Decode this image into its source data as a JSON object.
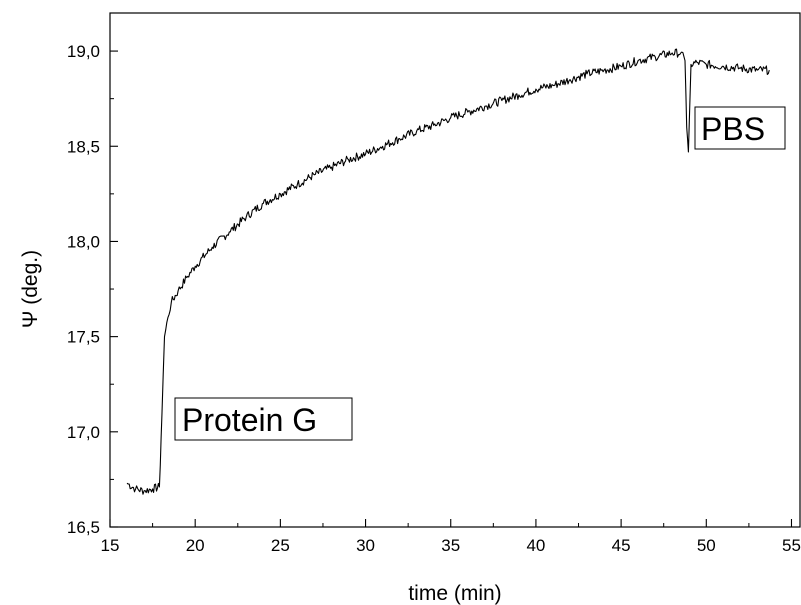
{
  "chart_data": {
    "type": "line",
    "title": "",
    "xlabel": "time (min)",
    "ylabel": "Ψ (deg.)",
    "xlim": [
      15,
      55.5
    ],
    "ylim": [
      16.5,
      19.2
    ],
    "x_ticks": [
      15,
      20,
      25,
      30,
      35,
      40,
      45,
      50,
      55
    ],
    "x_tick_labels": [
      "15",
      "20",
      "25",
      "30",
      "35",
      "40",
      "45",
      "50",
      "55"
    ],
    "y_ticks": [
      16.5,
      17.0,
      17.5,
      18.0,
      18.5,
      19.0
    ],
    "y_tick_labels": [
      "16,5",
      "17,0",
      "17,5",
      "18,0",
      "18,5",
      "19,0"
    ],
    "grid": false,
    "line_color": "#000000",
    "series": [
      {
        "x": [
          16.0,
          16.5,
          17.0,
          17.5,
          17.9,
          18.05,
          18.2,
          18.4,
          18.6,
          19.0,
          19.5,
          20.0,
          21.0,
          22.0,
          23.0,
          24.0,
          25.0,
          26.0,
          27.0,
          28.0,
          29.0,
          30.0,
          31.0,
          32.0,
          33.0,
          34.0,
          35.0,
          36.0,
          37.0,
          38.0,
          39.0,
          40.0,
          41.0,
          42.0,
          43.0,
          44.0,
          45.0,
          46.0,
          47.0,
          48.0,
          48.5,
          48.75,
          48.85,
          48.95,
          49.1,
          49.5,
          50.0,
          51.0,
          52.0,
          53.0,
          53.7
        ],
        "y": [
          16.73,
          16.7,
          16.69,
          16.7,
          16.71,
          17.1,
          17.5,
          17.6,
          17.68,
          17.74,
          17.81,
          17.87,
          17.97,
          18.05,
          18.13,
          18.2,
          18.25,
          18.3,
          18.35,
          18.39,
          18.43,
          18.46,
          18.5,
          18.54,
          18.58,
          18.61,
          18.65,
          18.68,
          18.71,
          18.74,
          18.77,
          18.8,
          18.82,
          18.85,
          18.88,
          18.9,
          18.92,
          18.95,
          18.97,
          18.99,
          18.99,
          18.95,
          18.6,
          18.47,
          18.93,
          18.94,
          18.93,
          18.92,
          18.91,
          18.9,
          18.9
        ]
      }
    ],
    "annotations": [
      {
        "text": "Protein G"
      },
      {
        "text": "PBS"
      }
    ]
  }
}
